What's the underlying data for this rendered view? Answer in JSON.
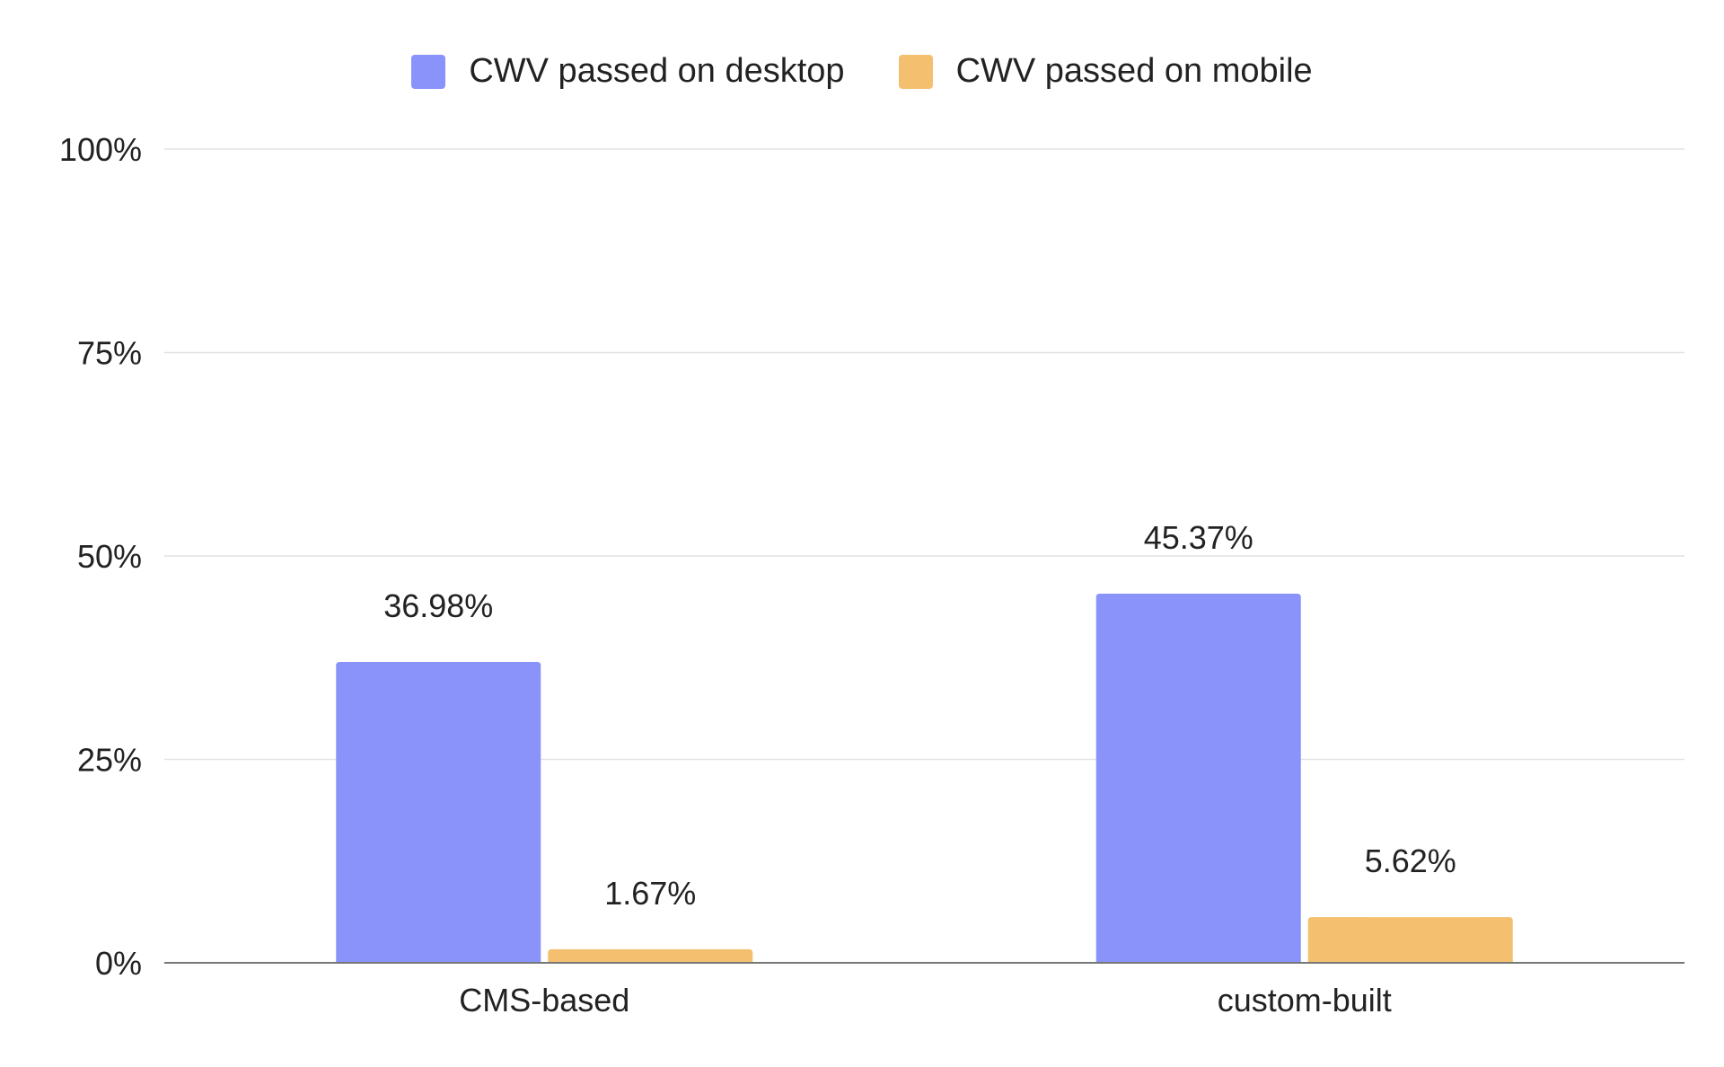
{
  "chart_data": {
    "type": "bar",
    "title": "",
    "xlabel": "",
    "ylabel": "",
    "categories": [
      "CMS-based",
      "custom-built"
    ],
    "series": [
      {
        "name": "CWV passed on desktop",
        "color": "#8a93fa",
        "values": [
          36.98,
          45.37
        ],
        "labels": [
          "36.98%",
          "45.37%"
        ]
      },
      {
        "name": "CWV passed on mobile",
        "color": "#f4c070",
        "values": [
          1.67,
          5.62
        ],
        "labels": [
          "1.67%",
          "5.62%"
        ]
      }
    ],
    "ylim": [
      0,
      100
    ],
    "yticks": [
      0,
      25,
      50,
      75,
      100
    ],
    "ytick_labels": [
      "0%",
      "25%",
      "50%",
      "75%",
      "100%"
    ],
    "grid": true,
    "legend_position": "top-center",
    "gridline_color": "#e2e2e2",
    "axis_color": "#777777"
  }
}
